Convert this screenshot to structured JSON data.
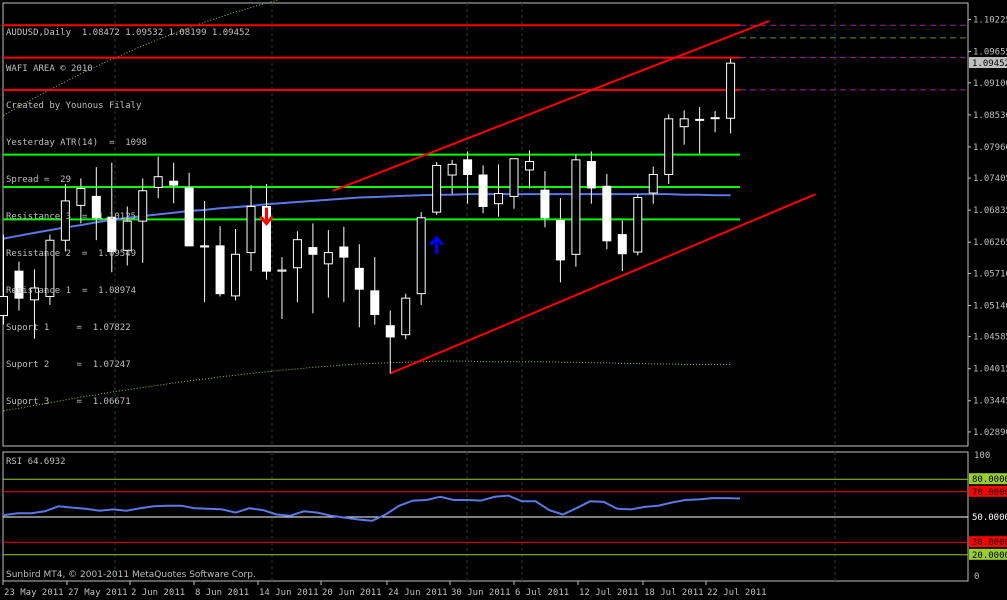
{
  "header": {
    "symbol_line": "AUDUSD,Daily  1.08472 1.09532 1.08199 1.09452",
    "lines": [
      "WAFI AREA © 2010",
      "Created by Younous Filaly",
      "Yesterday ATR(14)  =  1098",
      "Spread =  29",
      "Resistance 3  =  1.10125",
      "Resistance 2  =  1.09549",
      "Resistance 1  =  1.08974",
      "Suport 1     =  1.07822",
      "Suport 2     =  1.07247",
      "Suport 3     =  1.06671"
    ]
  },
  "footer": {
    "copyright": "Sunbird MT4, © 2001-2011 MetaQuotes Software Corp."
  },
  "rsi_panel": {
    "title": "RSI 64.6932",
    "axis": [
      "100",
      "0"
    ],
    "levels": [
      {
        "value": 80,
        "label": "80.0000",
        "color": "#9acd32",
        "label_bg": "#9acd32"
      },
      {
        "value": 70,
        "label": "70.0000",
        "color": "#ff0000",
        "label_bg": "#ff0000"
      },
      {
        "value": 50,
        "label": "50.0000",
        "color": "#ffffff",
        "label_bg": "#000000"
      },
      {
        "value": 30,
        "label": "30.0000",
        "color": "#ff0000",
        "label_bg": "#ff0000"
      },
      {
        "value": 20,
        "label": "20.0000",
        "color": "#9acd32",
        "label_bg": "#9acd32"
      }
    ]
  },
  "price_axis": {
    "ticks": [
      "1.10225",
      "1.09655",
      "1.09100",
      "1.08530",
      "1.07960",
      "1.07405",
      "1.06835",
      "1.06265",
      "1.05710",
      "1.05140",
      "1.04585",
      "1.04015",
      "1.03445",
      "1.02890"
    ],
    "current_price": "1.09452"
  },
  "date_axis": {
    "labels": [
      "23 May 2011",
      "27 May 2011",
      "2 Jun 2011",
      "8 Jun 2011",
      "14 Jun 2011",
      "20 Jun 2011",
      "24 Jun 2011",
      "30 Jun 2011",
      "6 Jul 2011",
      "12 Jul 2011",
      "18 Jul 2011",
      "22 Jul 2011"
    ]
  },
  "colors": {
    "bull_candle": "#ffffff",
    "bear_candle": "#000000",
    "wick": "#ffffff",
    "ma_line": "#5a78e6",
    "rsi_line": "#5a78e6",
    "level_red": "#ff0000",
    "level_green": "#00ff00",
    "grid": "#1f3f3f",
    "arrow_down": "#ff0000",
    "arrow_up": "#0000ff",
    "frame": "#c0c0c0"
  },
  "chart_data": {
    "type": "candlestick",
    "symbol": "AUDUSD",
    "timeframe": "Daily",
    "ylim": [
      1.0264,
      1.1052
    ],
    "candles": [
      {
        "o": 1.0496,
        "h": 1.064,
        "l": 1.048,
        "c": 1.053
      },
      {
        "o": 1.0575,
        "h": 1.0592,
        "l": 1.0505,
        "c": 1.0527
      },
      {
        "o": 1.0524,
        "h": 1.0578,
        "l": 1.0455,
        "c": 1.0545
      },
      {
        "o": 1.053,
        "h": 1.064,
        "l": 1.0515,
        "c": 1.063
      },
      {
        "o": 1.063,
        "h": 1.073,
        "l": 1.061,
        "c": 1.07
      },
      {
        "o": 1.0692,
        "h": 1.074,
        "l": 1.066,
        "c": 1.0722
      },
      {
        "o": 1.0708,
        "h": 1.076,
        "l": 1.063,
        "c": 1.067
      },
      {
        "o": 1.0671,
        "h": 1.0768,
        "l": 1.0573,
        "c": 1.061
      },
      {
        "o": 1.0612,
        "h": 1.069,
        "l": 1.0585,
        "c": 1.0664
      },
      {
        "o": 1.0664,
        "h": 1.074,
        "l": 1.059,
        "c": 1.0718
      },
      {
        "o": 1.0724,
        "h": 1.0779,
        "l": 1.0705,
        "c": 1.0743
      },
      {
        "o": 1.0735,
        "h": 1.0768,
        "l": 1.0696,
        "c": 1.0728
      },
      {
        "o": 1.0723,
        "h": 1.075,
        "l": 1.062,
        "c": 1.062
      },
      {
        "o": 1.062,
        "h": 1.07,
        "l": 1.052,
        "c": 1.0618
      },
      {
        "o": 1.062,
        "h": 1.0655,
        "l": 1.053,
        "c": 1.0535
      },
      {
        "o": 1.0531,
        "h": 1.065,
        "l": 1.0523,
        "c": 1.0605
      },
      {
        "o": 1.0608,
        "h": 1.0728,
        "l": 1.0575,
        "c": 1.069
      },
      {
        "o": 1.069,
        "h": 1.073,
        "l": 1.056,
        "c": 1.0575
      },
      {
        "o": 1.0575,
        "h": 1.06,
        "l": 1.049,
        "c": 1.0577
      },
      {
        "o": 1.0581,
        "h": 1.0646,
        "l": 1.052,
        "c": 1.0631
      },
      {
        "o": 1.0617,
        "h": 1.066,
        "l": 1.05,
        "c": 1.0605
      },
      {
        "o": 1.0588,
        "h": 1.0648,
        "l": 1.0528,
        "c": 1.0608
      },
      {
        "o": 1.0618,
        "h": 1.0654,
        "l": 1.052,
        "c": 1.06
      },
      {
        "o": 1.058,
        "h": 1.0623,
        "l": 1.0475,
        "c": 1.0543
      },
      {
        "o": 1.054,
        "h": 1.06,
        "l": 1.048,
        "c": 1.0498
      },
      {
        "o": 1.0478,
        "h": 1.0505,
        "l": 1.0393,
        "c": 1.0458
      },
      {
        "o": 1.0462,
        "h": 1.0535,
        "l": 1.0454,
        "c": 1.0527
      },
      {
        "o": 1.0535,
        "h": 1.068,
        "l": 1.0515,
        "c": 1.067
      },
      {
        "o": 1.068,
        "h": 1.0769,
        "l": 1.0675,
        "c": 1.0763
      },
      {
        "o": 1.0746,
        "h": 1.0773,
        "l": 1.0712,
        "c": 1.0765
      },
      {
        "o": 1.0773,
        "h": 1.0788,
        "l": 1.0695,
        "c": 1.0747
      },
      {
        "o": 1.0746,
        "h": 1.0763,
        "l": 1.0678,
        "c": 1.069
      },
      {
        "o": 1.0695,
        "h": 1.0765,
        "l": 1.0672,
        "c": 1.0713
      },
      {
        "o": 1.0708,
        "h": 1.077,
        "l": 1.0686,
        "c": 1.0775
      },
      {
        "o": 1.0755,
        "h": 1.079,
        "l": 1.0722,
        "c": 1.077
      },
      {
        "o": 1.0719,
        "h": 1.0753,
        "l": 1.0653,
        "c": 1.067
      },
      {
        "o": 1.0665,
        "h": 1.0705,
        "l": 1.0555,
        "c": 1.0595
      },
      {
        "o": 1.0605,
        "h": 1.0784,
        "l": 1.0583,
        "c": 1.0773
      },
      {
        "o": 1.077,
        "h": 1.0788,
        "l": 1.0695,
        "c": 1.0723
      },
      {
        "o": 1.0726,
        "h": 1.0748,
        "l": 1.0614,
        "c": 1.0629
      },
      {
        "o": 1.064,
        "h": 1.0665,
        "l": 1.0575,
        "c": 1.0606
      },
      {
        "o": 1.0609,
        "h": 1.0712,
        "l": 1.0603,
        "c": 1.0706
      },
      {
        "o": 1.0714,
        "h": 1.0761,
        "l": 1.0695,
        "c": 1.0747
      },
      {
        "o": 1.0747,
        "h": 1.0854,
        "l": 1.073,
        "c": 1.0846
      },
      {
        "o": 1.0832,
        "h": 1.0861,
        "l": 1.08,
        "c": 1.0846
      },
      {
        "o": 1.0844,
        "h": 1.0867,
        "l": 1.0784,
        "c": 1.0845
      },
      {
        "o": 1.0848,
        "h": 1.086,
        "l": 1.0822,
        "c": 1.0847
      },
      {
        "o": 1.0847,
        "h": 1.0953,
        "l": 1.082,
        "c": 1.0945
      }
    ],
    "moving_average": [
      1.0633,
      1.0638,
      1.0643,
      1.0648,
      1.0653,
      1.0657,
      1.0662,
      1.0666,
      1.067,
      1.0673,
      1.0676,
      1.0679,
      1.0682,
      1.0684,
      1.0687,
      1.0689,
      1.0691,
      1.0694,
      1.0696,
      1.0698,
      1.07,
      1.0702,
      1.0704,
      1.0706,
      1.0707,
      1.0708,
      1.0709,
      1.071,
      1.0711,
      1.0711,
      1.0712,
      1.0712,
      1.0712,
      1.0712,
      1.0712,
      1.0712,
      1.0712,
      1.0712,
      1.0712,
      1.0712,
      1.0712,
      1.0712,
      1.0712,
      1.0712,
      1.0711,
      1.0711,
      1.071,
      1.071
    ],
    "envelope_upper": [
      1.0852,
      1.0868,
      1.0883,
      1.0898,
      1.0912,
      1.0926,
      1.0939,
      1.0952,
      1.0964,
      1.0976,
      1.0987,
      1.0998,
      1.1008,
      1.1018,
      1.1027,
      1.1036,
      1.1044,
      1.1052,
      1.1059,
      1.1066,
      1.1073,
      1.1079,
      1.1085,
      1.109,
      1.1095,
      1.11,
      1.1104,
      1.1107,
      1.111,
      1.1113,
      1.1114,
      1.1115,
      1.1116,
      1.1116,
      1.1116,
      1.1115,
      1.1114,
      1.1113,
      1.1112,
      1.111,
      1.1109,
      1.1108,
      1.1107,
      1.1106,
      1.1105,
      1.1105,
      1.1104,
      1.1104
    ],
    "envelope_lower": [
      1.0327,
      1.0331,
      1.0336,
      1.0341,
      1.0346,
      1.0351,
      1.0355,
      1.036,
      1.0364,
      1.0368,
      1.0372,
      1.0376,
      1.038,
      1.0383,
      1.0387,
      1.039,
      1.0393,
      1.0396,
      1.0399,
      1.0401,
      1.0404,
      1.0406,
      1.0408,
      1.041,
      1.0411,
      1.0412,
      1.0413,
      1.0414,
      1.0415,
      1.0415,
      1.0415,
      1.0414,
      1.0414,
      1.0414,
      1.0414,
      1.0414,
      1.0413,
      1.0413,
      1.0412,
      1.0412,
      1.0411,
      1.0411,
      1.041,
      1.041,
      1.0409,
      1.0409,
      1.0409,
      1.0409
    ],
    "resistance_levels": [
      1.10125,
      1.09549,
      1.08974
    ],
    "support_levels": [
      1.07822,
      1.07247,
      1.06671
    ],
    "channel_lines": [
      {
        "from": {
          "bar": 21.3,
          "price": 1.0718
        },
        "to": {
          "bar": 49.5,
          "price": 1.102
        }
      },
      {
        "from": {
          "bar": 25.0,
          "price": 1.0393
        },
        "to": {
          "bar": 52.5,
          "price": 1.0712
        }
      }
    ],
    "arrows": [
      {
        "type": "down",
        "bar": 17,
        "price": 1.0672
      },
      {
        "type": "up",
        "bar": 28,
        "price": 1.0622
      }
    ],
    "rsi": {
      "ylim": [
        0,
        100
      ],
      "values": [
        51.5,
        53,
        53,
        54.5,
        58.5,
        57.5,
        56.5,
        55,
        56,
        55,
        57,
        58.5,
        59,
        59,
        57,
        56.5,
        56,
        53.5,
        57,
        55.5,
        52,
        51,
        54.5,
        53.5,
        51,
        49.5,
        48,
        47,
        52,
        59,
        63,
        63.5,
        66,
        63.5,
        63.5,
        63,
        66,
        67,
        62.5,
        62.5,
        55.5,
        52,
        57,
        62.5,
        62,
        56.5,
        56,
        58,
        59,
        61.5,
        63.5,
        64,
        65,
        65,
        64.7
      ]
    }
  }
}
